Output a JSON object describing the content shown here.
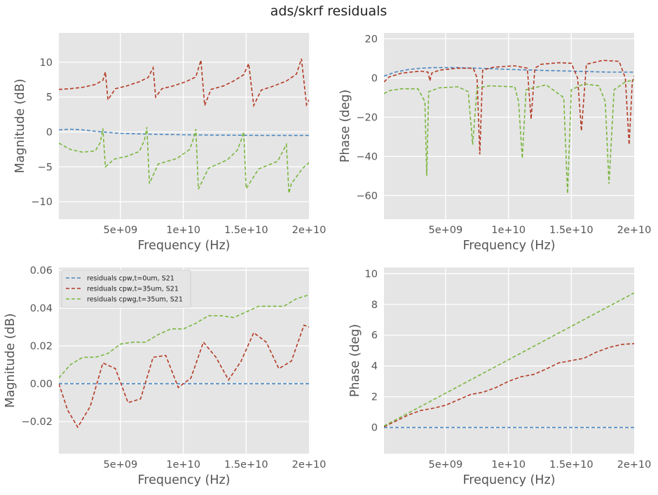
{
  "figure": {
    "title": "ads/skrf residuals"
  },
  "colors": {
    "blue": "#4a86c0",
    "red": "#b43a25",
    "green": "#7ab63e",
    "panel_bg": "#e5e5e5",
    "grid": "#ffffff",
    "tick_text": "#555555",
    "label_text": "#555555"
  },
  "chart_data": [
    {
      "type": "line",
      "xlabel": "Frequency (Hz)",
      "ylabel": "Magnitude (dB)",
      "xlim": [
        100000000.0,
        20000000000.0
      ],
      "ylim": [
        -12.5,
        14.2
      ],
      "xticks": [
        5000000000.0,
        10000000000.0,
        15000000000.0,
        20000000000.0
      ],
      "xtick_labels": [
        "5e+09",
        "1e+10",
        "1.5e+10",
        "2e+10"
      ],
      "yticks": [
        -10,
        -5,
        0,
        5,
        10
      ],
      "ytick_labels": [
        "−10",
        "−5",
        "0",
        "5",
        "10"
      ],
      "grid": true,
      "series": [
        {
          "color": "blue",
          "dashed": true,
          "x": [
            100000000.0,
            1000000000.0,
            2000000000.0,
            3000000000.0,
            5000000000.0,
            7000000000.0,
            10000000000.0,
            13000000000.0,
            16000000000.0,
            20000000000.0
          ],
          "y": [
            0.3,
            0.4,
            0.3,
            0.1,
            -0.2,
            -0.3,
            -0.4,
            -0.45,
            -0.5,
            -0.5
          ]
        },
        {
          "color": "red",
          "dashed": true,
          "x": [
            100000000.0,
            1000000000.0,
            2000000000.0,
            3000000000.0,
            3600000000.0,
            3800000000.0,
            4000000000.0,
            4600000000.0,
            5500000000.0,
            6500000000.0,
            7200000000.0,
            7600000000.0,
            7800000000.0,
            8300000000.0,
            9200000000.0,
            10200000000.0,
            11000000000.0,
            11400000000.0,
            11700000000.0,
            12200000000.0,
            13200000000.0,
            14000000000.0,
            14800000000.0,
            15200000000.0,
            15600000000.0,
            16200000000.0,
            17200000000.0,
            18200000000.0,
            19000000000.0,
            19400000000.0,
            19800000000.0,
            20000000000.0
          ],
          "y": [
            6.1,
            6.2,
            6.4,
            6.8,
            7.4,
            8.6,
            4.6,
            6.2,
            6.6,
            7.2,
            7.8,
            9.2,
            5.0,
            6.2,
            6.6,
            7.2,
            7.9,
            10.3,
            3.8,
            6.1,
            6.6,
            7.3,
            8.2,
            9.8,
            3.8,
            6.0,
            6.6,
            7.3,
            8.3,
            10.5,
            3.9,
            4.6
          ]
        },
        {
          "color": "green",
          "dashed": true,
          "x": [
            100000000.0,
            1000000000.0,
            2000000000.0,
            3000000000.0,
            3400000000.0,
            3600000000.0,
            3800000000.0,
            4500000000.0,
            5500000000.0,
            6500000000.0,
            6900000000.0,
            7100000000.0,
            7300000000.0,
            8000000000.0,
            9500000000.0,
            10500000000.0,
            10800000000.0,
            11000000000.0,
            11200000000.0,
            12000000000.0,
            13500000000.0,
            14300000000.0,
            14600000000.0,
            14800000000.0,
            15000000000.0,
            16000000000.0,
            17500000000.0,
            18200000000.0,
            18400000000.0,
            18600000000.0,
            19500000000.0,
            20000000000.0
          ],
          "y": [
            -1.6,
            -2.5,
            -2.9,
            -2.7,
            -1.5,
            0.5,
            -5.0,
            -3.9,
            -3.5,
            -2.8,
            -1.2,
            0.7,
            -7.4,
            -4.6,
            -3.8,
            -2.5,
            -1.0,
            0.4,
            -8.2,
            -5.2,
            -4.0,
            -2.6,
            -1.2,
            0.0,
            -8.1,
            -5.3,
            -4.2,
            -1.8,
            -8.8,
            -7.4,
            -5.2,
            -4.4
          ]
        }
      ]
    },
    {
      "type": "line",
      "xlabel": "Frequency (Hz)",
      "ylabel": "Phase (deg)",
      "xlim": [
        100000000.0,
        20000000000.0
      ],
      "ylim": [
        -72,
        23
      ],
      "xticks": [
        5000000000.0,
        10000000000.0,
        15000000000.0,
        20000000000.0
      ],
      "xtick_labels": [
        "5e+09",
        "1e+10",
        "1.5e+10",
        "2e+10"
      ],
      "yticks": [
        -60,
        -40,
        -20,
        0,
        20
      ],
      "ytick_labels": [
        "−60",
        "−40",
        "−20",
        "0",
        "20"
      ],
      "grid": true,
      "series": [
        {
          "color": "blue",
          "dashed": true,
          "x": [
            100000000.0,
            1000000000.0,
            2000000000.0,
            3000000000.0,
            4000000000.0,
            6000000000.0,
            8000000000.0,
            10000000000.0,
            12000000000.0,
            15000000000.0,
            18000000000.0,
            20000000000.0
          ],
          "y": [
            1.0,
            3.0,
            4.3,
            5.0,
            5.3,
            5.3,
            4.9,
            4.4,
            4.0,
            3.5,
            3.0,
            3.0
          ]
        },
        {
          "color": "red",
          "dashed": true,
          "x": [
            100000000.0,
            500000000.0,
            1500000000.0,
            3000000000.0,
            3600000000.0,
            3750000000.0,
            3900000000.0,
            4500000000.0,
            6000000000.0,
            7200000000.0,
            7500000000.0,
            7720000000.0,
            7950000000.0,
            8800000000.0,
            10500000000.0,
            11500000000.0,
            11800000000.0,
            12100000000.0,
            12600000000.0,
            14000000000.0,
            15000000000.0,
            15500000000.0,
            15800000000.0,
            16200000000.0,
            17500000000.0,
            18800000000.0,
            19300000000.0,
            19600000000.0,
            19850000000.0,
            20000000000.0
          ],
          "y": [
            -2,
            0.5,
            2.5,
            3.5,
            3.0,
            -1.5,
            2.5,
            4.0,
            5.0,
            5.0,
            0,
            -39,
            4.0,
            5.5,
            6.2,
            5.0,
            -21,
            5.0,
            7.0,
            7.8,
            7.5,
            0,
            -27,
            7.0,
            9.0,
            8.5,
            0,
            -34,
            -2,
            1.0
          ]
        },
        {
          "color": "green",
          "dashed": true,
          "x": [
            100000000.0,
            500000000.0,
            1500000000.0,
            2800000000.0,
            3350000000.0,
            3500000000.0,
            3650000000.0,
            4500000000.0,
            6000000000.0,
            6800000000.0,
            7150000000.0,
            7500000000.0,
            8500000000.0,
            10500000000.0,
            10800000000.0,
            11100000000.0,
            11400000000.0,
            13000000000.0,
            14400000000.0,
            14700000000.0,
            15000000000.0,
            16000000000.0,
            17200000000.0,
            17700000000.0,
            18000000000.0,
            18400000000.0,
            19300000000.0,
            20000000000.0
          ],
          "y": [
            -8,
            -6.5,
            -5.5,
            -5.5,
            -12,
            -50,
            -7,
            -5,
            -4.5,
            -7,
            -34,
            -5,
            -4,
            -4.5,
            -12,
            -41,
            -6,
            -3.5,
            -10,
            -59,
            -6,
            -3,
            -4,
            -12,
            -54,
            -6,
            -2,
            -1
          ]
        }
      ]
    },
    {
      "type": "line",
      "xlabel": "Frequency (Hz)",
      "ylabel": "Magnitude (dB)",
      "xlim": [
        100000000.0,
        20000000000.0
      ],
      "ylim": [
        -0.037,
        0.0615
      ],
      "xticks": [
        5000000000.0,
        10000000000.0,
        15000000000.0,
        20000000000.0
      ],
      "xtick_labels": [
        "5e+09",
        "1e+10",
        "1.5e+10",
        "2e+10"
      ],
      "yticks": [
        -0.02,
        0.0,
        0.02,
        0.04,
        0.06
      ],
      "ytick_labels": [
        "−0.02",
        "0.00",
        "0.02",
        "0.04",
        "0.06"
      ],
      "grid": true,
      "legend": {
        "placement": "upper-left",
        "entries": [
          "residuals cpw,t=0um, S21",
          "residuals cpw,t=35um, S21",
          "residuals cpwg,t=35um, S21"
        ],
        "colors": [
          "blue",
          "red",
          "green"
        ]
      },
      "series": [
        {
          "name": "residuals cpw,t=0um, S21",
          "color": "blue",
          "dashed": true,
          "x": [
            100000000.0,
            20000000000.0
          ],
          "y": [
            0.0,
            0.0
          ]
        },
        {
          "name": "residuals cpw,t=35um, S21",
          "color": "red",
          "dashed": true,
          "x": [
            100000000.0,
            800000000.0,
            1600000000.0,
            2600000000.0,
            3600000000.0,
            4600000000.0,
            5600000000.0,
            6600000000.0,
            7600000000.0,
            8600000000.0,
            9600000000.0,
            10600000000.0,
            11600000000.0,
            12600000000.0,
            13600000000.0,
            14600000000.0,
            15600000000.0,
            16600000000.0,
            17600000000.0,
            18600000000.0,
            19600000000.0,
            20000000000.0
          ],
          "y": [
            0.0,
            -0.014,
            -0.023,
            -0.012,
            0.011,
            0.008,
            -0.01,
            -0.008,
            0.014,
            0.015,
            -0.002,
            0.003,
            0.022,
            0.014,
            0.002,
            0.012,
            0.027,
            0.022,
            0.008,
            0.012,
            0.031,
            0.03
          ]
        },
        {
          "name": "residuals cpwg,t=35um, S21",
          "color": "green",
          "dashed": true,
          "x": [
            100000000.0,
            1000000000.0,
            2000000000.0,
            3000000000.0,
            4000000000.0,
            5000000000.0,
            6000000000.0,
            7000000000.0,
            8000000000.0,
            9000000000.0,
            10000000000.0,
            11000000000.0,
            12000000000.0,
            13000000000.0,
            14000000000.0,
            15000000000.0,
            16000000000.0,
            17000000000.0,
            18000000000.0,
            19000000000.0,
            20000000000.0
          ],
          "y": [
            0.003,
            0.01,
            0.014,
            0.014,
            0.016,
            0.021,
            0.022,
            0.022,
            0.026,
            0.029,
            0.029,
            0.032,
            0.036,
            0.036,
            0.035,
            0.038,
            0.041,
            0.041,
            0.041,
            0.045,
            0.047
          ]
        }
      ]
    },
    {
      "type": "line",
      "xlabel": "Frequency (Hz)",
      "ylabel": "Phase (deg)",
      "xlim": [
        100000000.0,
        20000000000.0
      ],
      "ylim": [
        -1.7,
        10.4
      ],
      "xticks": [
        5000000000.0,
        10000000000.0,
        15000000000.0,
        20000000000.0
      ],
      "xtick_labels": [
        "5e+09",
        "1e+10",
        "1.5e+10",
        "2e+10"
      ],
      "yticks": [
        0,
        2,
        4,
        6,
        8,
        10
      ],
      "ytick_labels": [
        "0",
        "2",
        "4",
        "6",
        "8",
        "10"
      ],
      "grid": true,
      "series": [
        {
          "color": "blue",
          "dashed": true,
          "x": [
            100000000.0,
            20000000000.0
          ],
          "y": [
            0.0,
            0.0
          ]
        },
        {
          "color": "red",
          "dashed": true,
          "x": [
            100000000.0,
            1000000000.0,
            2000000000.0,
            3000000000.0,
            4000000000.0,
            5000000000.0,
            6000000000.0,
            7000000000.0,
            8000000000.0,
            9000000000.0,
            10000000000.0,
            11000000000.0,
            12000000000.0,
            13000000000.0,
            14000000000.0,
            15000000000.0,
            16000000000.0,
            17000000000.0,
            18000000000.0,
            19000000000.0,
            20000000000.0
          ],
          "y": [
            0.05,
            0.4,
            0.8,
            1.1,
            1.25,
            1.45,
            1.8,
            2.15,
            2.3,
            2.6,
            3.0,
            3.3,
            3.45,
            3.8,
            4.2,
            4.35,
            4.5,
            4.9,
            5.2,
            5.4,
            5.45
          ]
        },
        {
          "color": "green",
          "dashed": true,
          "x": [
            100000000.0,
            20000000000.0
          ],
          "y": [
            0.1,
            8.75
          ]
        }
      ]
    }
  ]
}
